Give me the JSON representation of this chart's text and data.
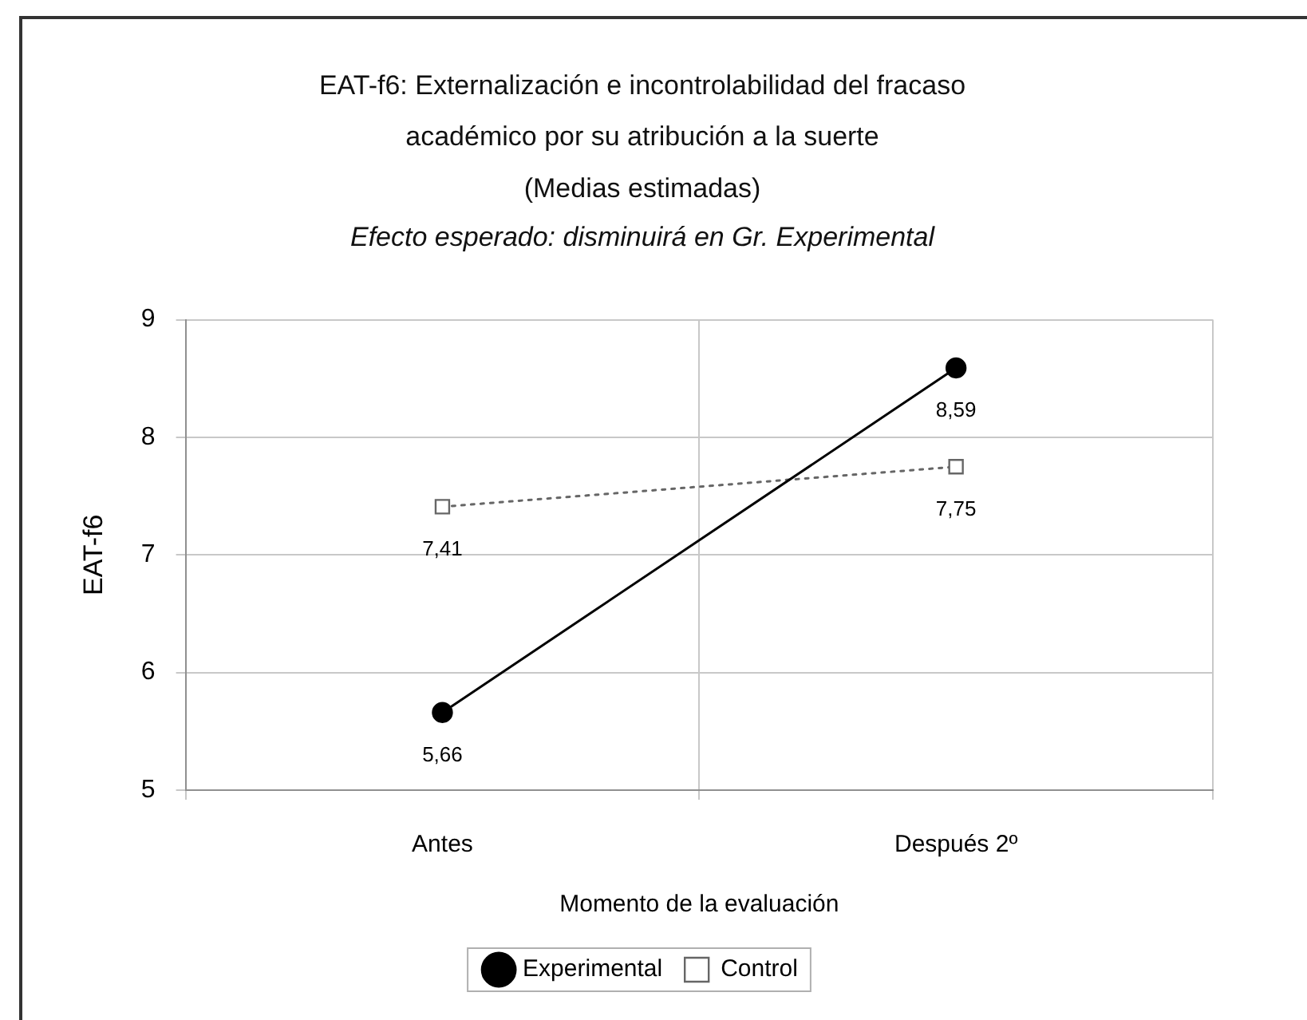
{
  "chart_data": {
    "type": "line",
    "title": "EAT-f6: Externalización e incontrolabilidad del fracaso\nacadémico por su atribución a la suerte\n(Medias estimadas)",
    "subtitle": "Efecto esperado: disminuirá en Gr. Experimental",
    "xlabel": "Momento de la evaluación",
    "ylabel": "EAT-f6",
    "categories": [
      "Antes",
      "Después 2º"
    ],
    "series": [
      {
        "name": "Experimental",
        "color": "#000000",
        "values": [
          5.66,
          8.59
        ],
        "value_labels": [
          "5,66",
          "8,59"
        ],
        "marker": "circle",
        "line_style": "solid"
      },
      {
        "name": "Control",
        "color": "#666666",
        "values": [
          7.41,
          7.75
        ],
        "value_labels": [
          "7,41",
          "7,75"
        ],
        "marker": "square",
        "line_style": "dotted"
      }
    ],
    "ylim": [
      5,
      9
    ],
    "yticks": [
      5,
      6,
      7,
      8,
      9
    ],
    "grid": true,
    "legend": "bottom"
  }
}
